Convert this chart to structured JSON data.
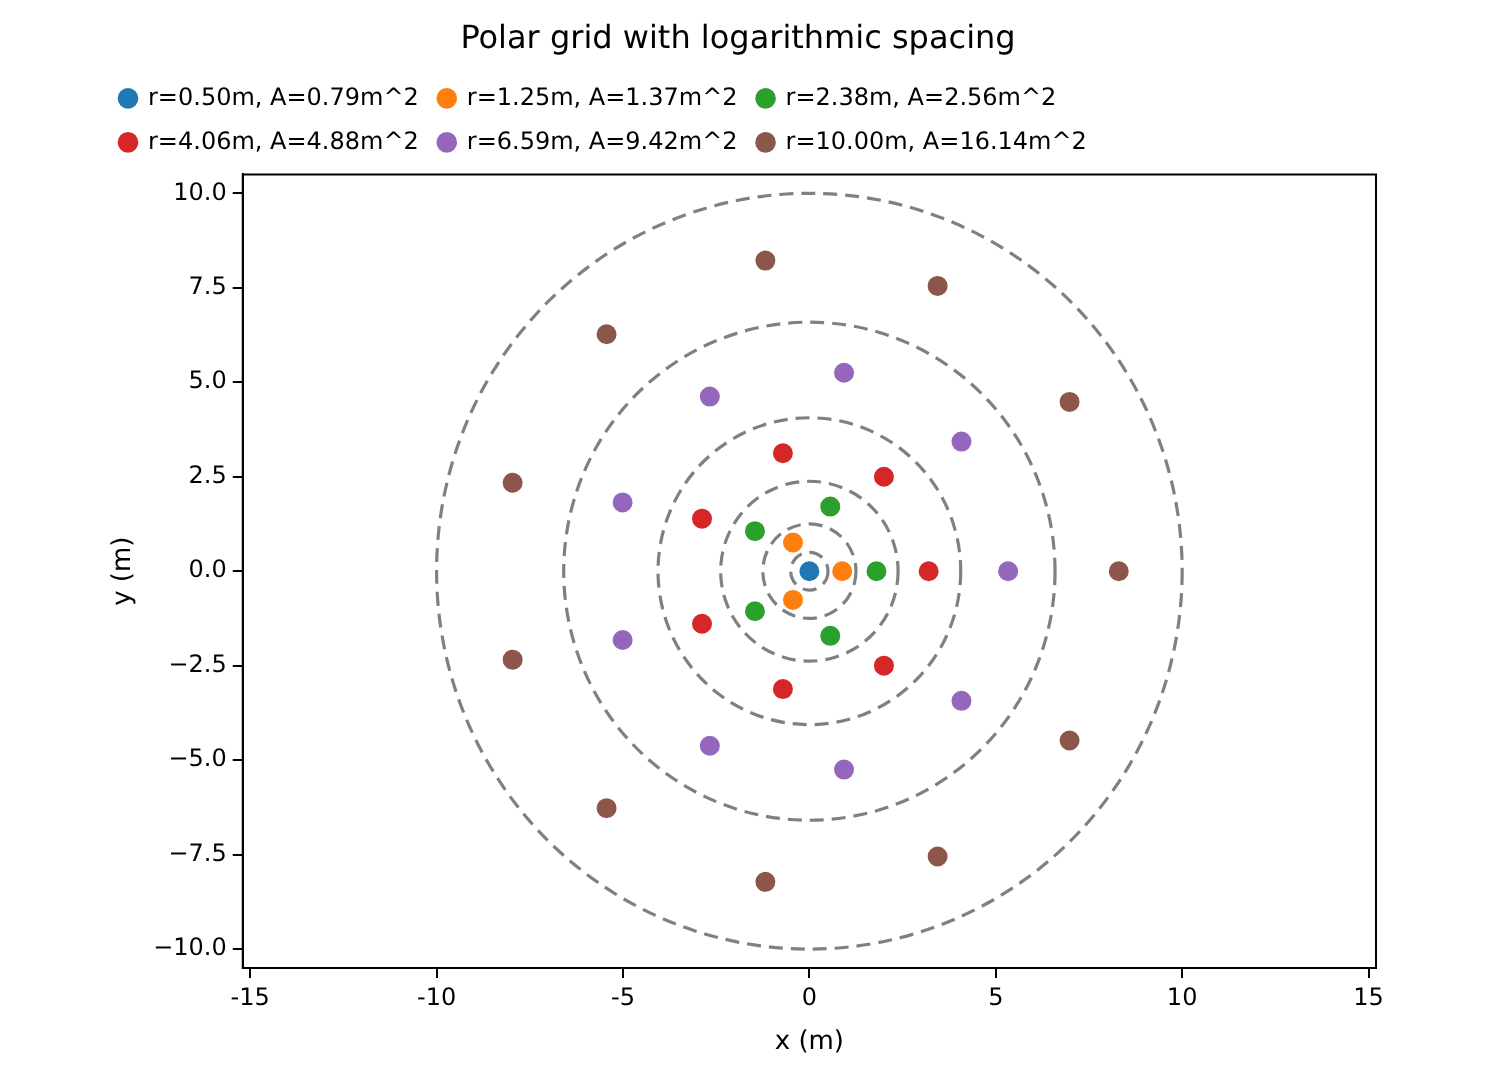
{
  "chart_data": {
    "type": "scatter",
    "title": "Polar grid with logarithmic spacing",
    "xlabel": "x (m)",
    "ylabel": "y (m)",
    "xlim": [
      -15.2,
      15.2
    ],
    "xticks": [
      -15,
      -10,
      -5,
      0,
      5,
      10,
      15
    ],
    "ylim": [
      -10.5,
      10.5
    ],
    "yticks": [
      {
        "value": -10,
        "label": "−10.0"
      },
      {
        "value": -7.5,
        "label": "−7.5"
      },
      {
        "value": -5,
        "label": "−5.0"
      },
      {
        "value": -2.5,
        "label": "−2.5"
      },
      {
        "value": 0,
        "label": "0.0"
      },
      {
        "value": 2.5,
        "label": "2.5"
      },
      {
        "value": 5,
        "label": "5.0"
      },
      {
        "value": 7.5,
        "label": "7.5"
      },
      {
        "value": 10,
        "label": "10.0"
      }
    ],
    "grid": false,
    "legend": "top left",
    "marker": "circle",
    "series": [
      {
        "name": "r=0.50m, A=0.79m^2",
        "color": "#1f77b4",
        "x": [
          0
        ],
        "values": [
          0
        ]
      },
      {
        "name": "r=1.25m, A=1.37m^2",
        "color": "#ff7f0e",
        "x": [
          0.88,
          -0.44,
          -0.44
        ],
        "values": [
          0,
          0.76,
          -0.76
        ]
      },
      {
        "name": "r=2.38m, A=2.56m^2",
        "color": "#2ca02c",
        "x": [
          1.8,
          0.56,
          -1.46,
          -1.46,
          0.56
        ],
        "values": [
          0,
          1.71,
          1.06,
          -1.06,
          -1.71
        ]
      },
      {
        "name": "r=4.06m, A=4.88m^2",
        "color": "#d62728",
        "x": [
          3.2,
          2.0,
          -0.71,
          -2.88,
          -2.88,
          -0.71,
          2.0
        ],
        "values": [
          0,
          2.5,
          3.12,
          1.39,
          -1.39,
          -3.12,
          -2.5
        ]
      },
      {
        "name": "r=6.59m, A=9.42m^2",
        "color": "#9467bd",
        "x": [
          5.33,
          4.08,
          0.93,
          -2.67,
          -5.01,
          -5.01,
          -2.67,
          0.93,
          4.08
        ],
        "values": [
          0,
          3.43,
          5.25,
          4.62,
          1.82,
          -1.82,
          -4.62,
          -5.25,
          -3.43
        ]
      },
      {
        "name": "r=10.00m, A=16.14m^2",
        "color": "#8c564b",
        "x": [
          8.3,
          6.98,
          3.44,
          -1.18,
          -5.44,
          -7.96,
          -7.96,
          -5.44,
          -1.18,
          3.44,
          6.98
        ],
        "values": [
          0,
          4.48,
          7.55,
          8.22,
          6.27,
          2.34,
          -2.34,
          -6.27,
          -8.22,
          -7.55,
          -4.48
        ]
      }
    ]
  }
}
